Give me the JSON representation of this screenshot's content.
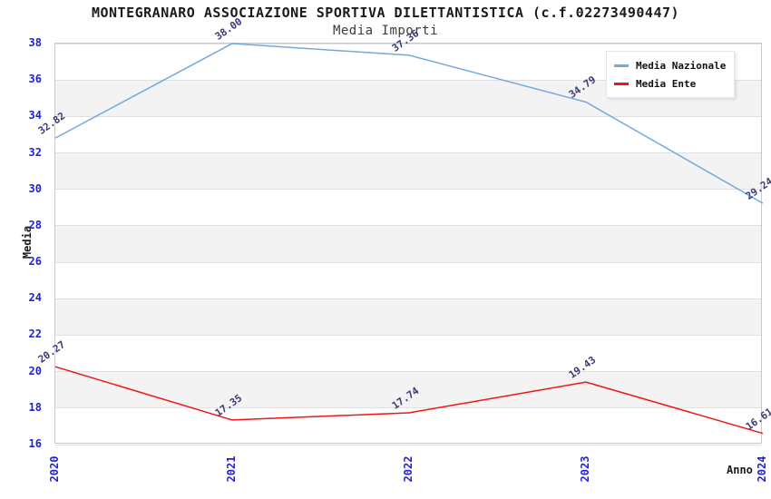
{
  "colors": {
    "tick": "#2323cc",
    "point_label": "#3a3a72",
    "band": "#f3f3f3",
    "grid": "#e0e0e0",
    "plot_border": "#c9c9c9",
    "title": "#1a1a1a",
    "subtitle": "#3c3c3c",
    "axis_title": "#1a1a1a",
    "series_nazionale": "#74a9dc",
    "series_ente": "#ef1515"
  },
  "chart_data": {
    "type": "line",
    "title": "MONTEGRANARO ASSOCIAZIONE SPORTIVA DILETTANTISTICA (c.f.02273490447)",
    "subtitle": "Media Importi",
    "xlabel": "Anno",
    "ylabel": "Media",
    "x": [
      "2020",
      "2021",
      "2022",
      "2023",
      "2024"
    ],
    "series": [
      {
        "name": "Media Nazionale",
        "color": "#74a9dc",
        "values": [
          32.82,
          38.0,
          37.36,
          34.79,
          29.24
        ]
      },
      {
        "name": "Media Ente",
        "color": "#ef1515",
        "values": [
          20.27,
          17.35,
          17.74,
          19.43,
          16.61
        ]
      }
    ],
    "ylim": [
      16,
      38
    ],
    "ytick_step": 2,
    "grid": true,
    "banded_background": true,
    "point_labels": true,
    "legend_position": "top-right"
  }
}
